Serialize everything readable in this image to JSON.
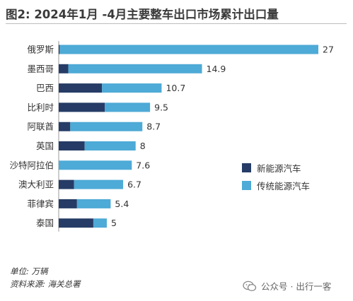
{
  "title": "图2: 2024年1月 -4月主要整车出口市场累计出口量",
  "colors": {
    "new_energy": "#263c66",
    "traditional": "#4eaad6"
  },
  "legend": {
    "new_energy": "新能源汽车",
    "traditional": "传统能源汽车"
  },
  "footer": {
    "unit": "单位: 万辆",
    "source": "资料来源: 海关总署"
  },
  "brand": {
    "text": "公众号 · 出行一客",
    "icon": "wechat-icon"
  },
  "chart_data": {
    "type": "bar",
    "orientation": "horizontal",
    "stacked": true,
    "categories": [
      "俄罗斯",
      "墨西哥",
      "巴西",
      "比利时",
      "阿联酋",
      "英国",
      "沙特阿拉伯",
      "澳大利亚",
      "菲律宾",
      "泰国"
    ],
    "series": [
      {
        "name": "新能源汽车",
        "values": [
          0.1,
          1.0,
          4.5,
          4.8,
          1.2,
          2.7,
          0.0,
          1.6,
          1.9,
          3.6
        ]
      },
      {
        "name": "传统能源汽车",
        "values": [
          26.9,
          13.9,
          6.2,
          4.7,
          7.5,
          5.3,
          7.6,
          5.1,
          3.5,
          1.4
        ]
      }
    ],
    "totals": [
      "27",
      "14.9",
      "10.7",
      "9.5",
      "8.7",
      "8",
      "7.6",
      "6.7",
      "5.4",
      "5"
    ],
    "xlim": [
      0,
      27
    ],
    "legend_position": "right",
    "grid": false
  }
}
